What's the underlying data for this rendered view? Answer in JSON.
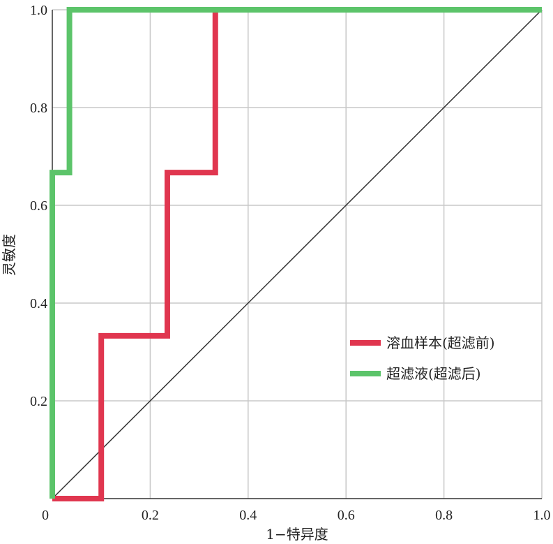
{
  "chart_data": {
    "type": "line",
    "xlabel": "1−特异度",
    "ylabel": "灵敏度",
    "xlim": [
      0,
      1
    ],
    "ylim": [
      0,
      1
    ],
    "x_ticks": [
      "0",
      "0.2",
      "0.4",
      "0.6",
      "0.8",
      "1.0"
    ],
    "y_ticks": [
      "0.2",
      "0.4",
      "0.6",
      "0.8",
      "1.0"
    ],
    "grid": true,
    "legend_position": "right",
    "reference_line": {
      "from": [
        0,
        0
      ],
      "to": [
        1,
        1
      ],
      "color": "#333333"
    },
    "series": [
      {
        "name": "溶血样本(超滤前)",
        "color": "#e0364f",
        "points": [
          [
            0,
            0
          ],
          [
            0.1,
            0
          ],
          [
            0.1,
            0.333
          ],
          [
            0.235,
            0.333
          ],
          [
            0.235,
            0.667
          ],
          [
            0.333,
            0.667
          ],
          [
            0.333,
            1
          ],
          [
            1,
            1
          ]
        ]
      },
      {
        "name": "超滤液(超滤后)",
        "color": "#5cc46a",
        "points": [
          [
            0,
            0
          ],
          [
            0,
            0.667
          ],
          [
            0.035,
            0.667
          ],
          [
            0.035,
            1
          ],
          [
            1,
            1
          ]
        ]
      }
    ]
  }
}
